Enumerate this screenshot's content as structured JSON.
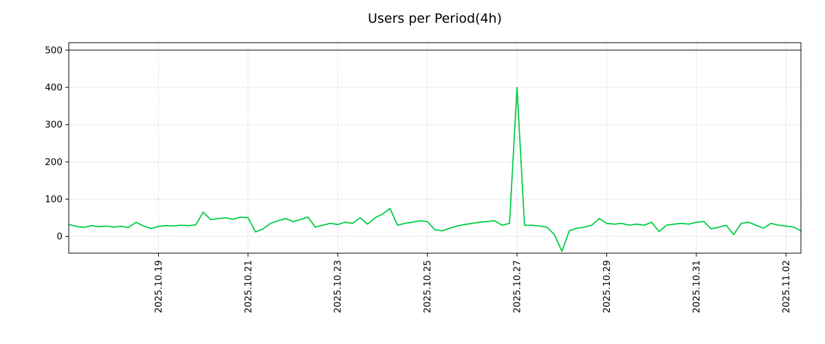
{
  "chart_data": {
    "type": "line",
    "title": "Users per Period(4h)",
    "xlabel": "",
    "ylabel": "",
    "x_tick_labels": [
      "2025.10.19",
      "2025.10.21",
      "2025.10.23",
      "2025.10.25",
      "2025.10.27",
      "2025.10.29",
      "2025.10.31",
      "2025.11.02"
    ],
    "x_tick_indices": [
      12,
      24,
      36,
      48,
      60,
      72,
      84,
      96
    ],
    "y_ticks": [
      0,
      100,
      200,
      300,
      400,
      500
    ],
    "ylim": [
      -45,
      520
    ],
    "grid": "dotted",
    "legend_position": "none",
    "reference_line_y": 500,
    "line_color": "#00cc44",
    "grid_color": "#b3b3b3",
    "axis_color": "#000000",
    "series": [
      {
        "name": "users",
        "values": [
          32,
          27,
          24,
          29,
          26,
          28,
          25,
          27,
          24,
          38,
          28,
          21,
          27,
          29,
          28,
          30,
          29,
          31,
          65,
          45,
          48,
          50,
          46,
          52,
          50,
          12,
          20,
          35,
          42,
          48,
          40,
          45,
          52,
          25,
          30,
          35,
          32,
          38,
          35,
          50,
          33,
          50,
          60,
          75,
          30,
          35,
          38,
          42,
          40,
          18,
          15,
          22,
          28,
          32,
          35,
          38,
          40,
          42,
          30,
          35,
          400,
          30,
          30,
          28,
          25,
          5,
          -40,
          15,
          22,
          25,
          30,
          48,
          35,
          33,
          35,
          30,
          33,
          30,
          38,
          13,
          30,
          33,
          35,
          33,
          38,
          40,
          20,
          25,
          30,
          5,
          35,
          38,
          30,
          22,
          35,
          30,
          28,
          25,
          15
        ]
      }
    ]
  }
}
